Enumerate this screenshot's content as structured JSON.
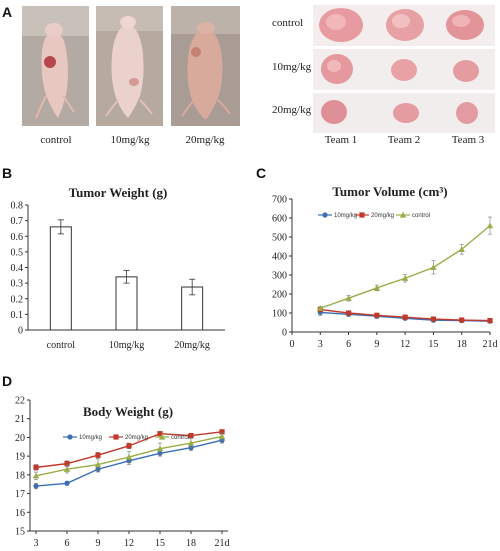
{
  "panel_letters": {
    "a": "A",
    "b": "B",
    "c": "C",
    "d": "D"
  },
  "photos": {
    "mice_labels": [
      "control",
      "10mg/kg",
      "20mg/kg"
    ],
    "tumor_row_labels": [
      "control",
      "10mg/kg",
      "20mg/kg"
    ],
    "team_labels": [
      "Team 1",
      "Team 2",
      "Team 3"
    ]
  },
  "chart_data": [
    {
      "type": "bar",
      "title": "Tumor Weight (g)",
      "xlabel": "",
      "ylabel": "",
      "categories": [
        "control",
        "10mg/kg",
        "20mg/kg"
      ],
      "values": [
        0.66,
        0.34,
        0.275
      ],
      "errors": [
        0.045,
        0.04,
        0.05
      ],
      "ylim": [
        0,
        0.8
      ],
      "yticks": [
        "0",
        "0.1",
        "0.2",
        "0.3",
        "0.4",
        "0.5",
        "0.6",
        "0.7",
        "0.8"
      ],
      "grid": false
    },
    {
      "type": "line",
      "title": "Tumor Volume (cm³)",
      "xlabel": "",
      "ylabel": "",
      "x": [
        3,
        6,
        9,
        12,
        15,
        18,
        21
      ],
      "xticks": [
        "0",
        "3",
        "6",
        "9",
        "12",
        "15",
        "18",
        "21d"
      ],
      "xlim": [
        0,
        21
      ],
      "ylim": [
        0,
        700
      ],
      "yticks": [
        "0",
        "100",
        "200",
        "300",
        "400",
        "500",
        "600",
        "700"
      ],
      "legend_position": "top-left",
      "series": [
        {
          "name": "10mg/kg",
          "color": "#3a6fb5",
          "marker": "circle",
          "values": [
            103,
            93,
            83,
            72,
            62,
            60,
            57
          ],
          "errors": [
            15,
            10,
            10,
            8,
            8,
            8,
            8
          ]
        },
        {
          "name": "20mg/kg",
          "color": "#c0392b",
          "marker": "square",
          "values": [
            118,
            100,
            88,
            78,
            68,
            63,
            60
          ],
          "errors": [
            12,
            10,
            10,
            8,
            8,
            8,
            8
          ]
        },
        {
          "name": "control",
          "color": "#9aad48",
          "marker": "triangle",
          "values": [
            125,
            178,
            232,
            283,
            340,
            435,
            560
          ],
          "errors": [
            10,
            15,
            15,
            20,
            35,
            25,
            45
          ]
        }
      ]
    },
    {
      "type": "line",
      "title": "Body  Weight (g)",
      "xlabel": "",
      "ylabel": "",
      "x": [
        3,
        6,
        9,
        12,
        15,
        18,
        21
      ],
      "xticks": [
        "3",
        "6",
        "9",
        "12",
        "15",
        "18",
        "21d"
      ],
      "ylim": [
        15,
        22
      ],
      "yticks": [
        "15",
        "16",
        "17",
        "18",
        "19",
        "20",
        "21",
        "22"
      ],
      "legend_position": "top-left",
      "series": [
        {
          "name": "10mg/kg",
          "color": "#3a6fb5",
          "marker": "circle",
          "values": [
            17.4,
            17.55,
            18.3,
            18.75,
            19.15,
            19.45,
            19.85
          ],
          "errors": [
            0.15,
            0.1,
            0.15,
            0.2,
            0.15,
            0.15,
            0.15
          ]
        },
        {
          "name": "20mg/kg",
          "color": "#c0392b",
          "marker": "square",
          "values": [
            18.4,
            18.6,
            19.05,
            19.55,
            20.2,
            20.1,
            20.3
          ],
          "errors": [
            0.15,
            0.15,
            0.15,
            0.15,
            0.1,
            0.1,
            0.1
          ]
        },
        {
          "name": "control",
          "color": "#9aad48",
          "marker": "triangle",
          "values": [
            17.95,
            18.3,
            18.55,
            18.95,
            19.4,
            19.7,
            20.05
          ],
          "errors": [
            0.2,
            0.2,
            0.3,
            0.3,
            0.3,
            0.25,
            0.2
          ]
        }
      ]
    }
  ]
}
